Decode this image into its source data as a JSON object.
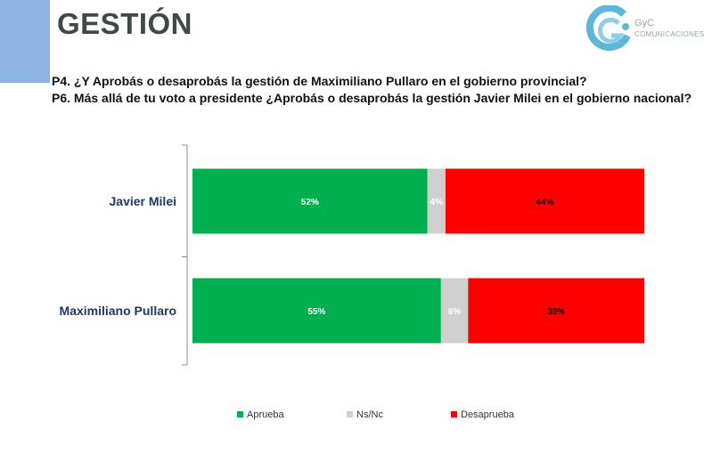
{
  "header": {
    "title": "GESTIÓN",
    "logo_line1": "GyC",
    "logo_line2": "COMUNICACIONES"
  },
  "questions": [
    "P4. ¿Y Aprobás o desaprobás la gestión de Maximiliano Pullaro en el gobierno provincial?",
    "P6. Más allá de tu voto a presidente ¿Aprobás o desaprobás la gestión Javier Milei en el gobierno nacional?"
  ],
  "colors": {
    "accent": "#8db3e2",
    "aprueba": "#00b050",
    "nsnc": "#d0d0d0",
    "desaprueba": "#ff0000"
  },
  "chart_data": {
    "type": "bar",
    "orientation": "horizontal",
    "stacked": true,
    "categories": [
      "Javier Milei",
      "Maximiliano Pullaro"
    ],
    "series": [
      {
        "name": "Aprueba",
        "values": [
          52,
          55
        ],
        "labels": [
          "52%",
          "55%"
        ],
        "color": "#00b050",
        "label_color": "#ffffff"
      },
      {
        "name": "Ns/Nc",
        "values": [
          4,
          6
        ],
        "labels": [
          "4%",
          "6%"
        ],
        "color": "#d0d0d0",
        "label_color": "#ffffff"
      },
      {
        "name": "Desaprueba",
        "values": [
          44,
          39
        ],
        "labels": [
          "44%",
          "39%"
        ],
        "color": "#ff0000",
        "label_color": "#111111"
      }
    ],
    "xlim": [
      0,
      100
    ],
    "grid": false,
    "legend_position": "bottom"
  }
}
